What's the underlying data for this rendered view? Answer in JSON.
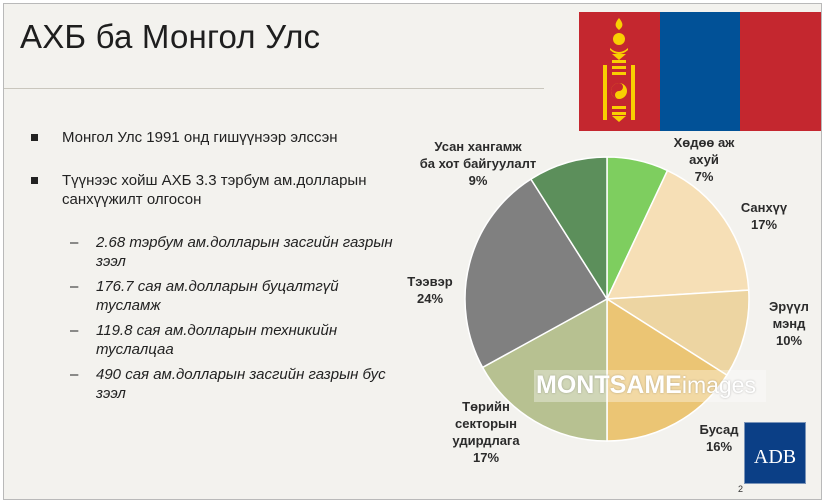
{
  "slide": {
    "title": "АХБ ба Монгол Улс",
    "page_number": "2",
    "watermark_bold": "MONTSAME",
    "watermark_light": "images",
    "logo_text": "ADB",
    "flag_colors": {
      "red": "#c4272f",
      "blue": "#015197",
      "gold": "#f9cf02"
    },
    "logo_color": "#0b3f86"
  },
  "bullets": [
    {
      "text": "Монгол Улс 1991 онд гишүүнээр элссэн",
      "subs": []
    },
    {
      "text": "Түүнээс хойш АХБ 3.3 тэрбум ам.долларын санхүүжилт олгосон",
      "subs": [
        "2.68 тэрбум ам.долларын засгийн газрын зээл",
        "176.7 сая ам.долларын буцалтгүй тусламж",
        "119.8 сая ам.долларын техникийн туслалцаа",
        "490 сая ам.долларын засгийн газрын бус зээл"
      ]
    }
  ],
  "chart_data": {
    "type": "pie",
    "title": "",
    "slices": [
      {
        "label": "Хөдөө аж ахуй",
        "label_lines": [
          "Хөдөө аж",
          "ахуй"
        ],
        "percent_label": "7%",
        "value": 7,
        "color": "#7ece5f"
      },
      {
        "label": "Санхүү",
        "label_lines": [
          "Санхүү"
        ],
        "percent_label": "17%",
        "value": 17,
        "color": "#f6dfb6"
      },
      {
        "label": "Эрүүл мэнд",
        "label_lines": [
          "Эрүүл",
          "мэнд"
        ],
        "percent_label": "10%",
        "value": 10,
        "color": "#edd5a2"
      },
      {
        "label": "Бусад",
        "label_lines": [
          "Бусад"
        ],
        "percent_label": "16%",
        "value": 16,
        "color": "#ebc574"
      },
      {
        "label": "Төрийн секторын удирдлага",
        "label_lines": [
          "Төрийн",
          "секторын",
          "удирдлага"
        ],
        "percent_label": "17%",
        "value": 17,
        "color": "#b7c191"
      },
      {
        "label": "Тээвэр",
        "label_lines": [
          "Тээвэр"
        ],
        "percent_label": "24%",
        "value": 24,
        "color": "#808080"
      },
      {
        "label": "Усан хангамж ба хот байгуулалт",
        "label_lines": [
          "Усан хангамж",
          "ба хот байгуулалт"
        ],
        "percent_label": "9%",
        "value": 9,
        "color": "#5c8f5b"
      }
    ]
  }
}
